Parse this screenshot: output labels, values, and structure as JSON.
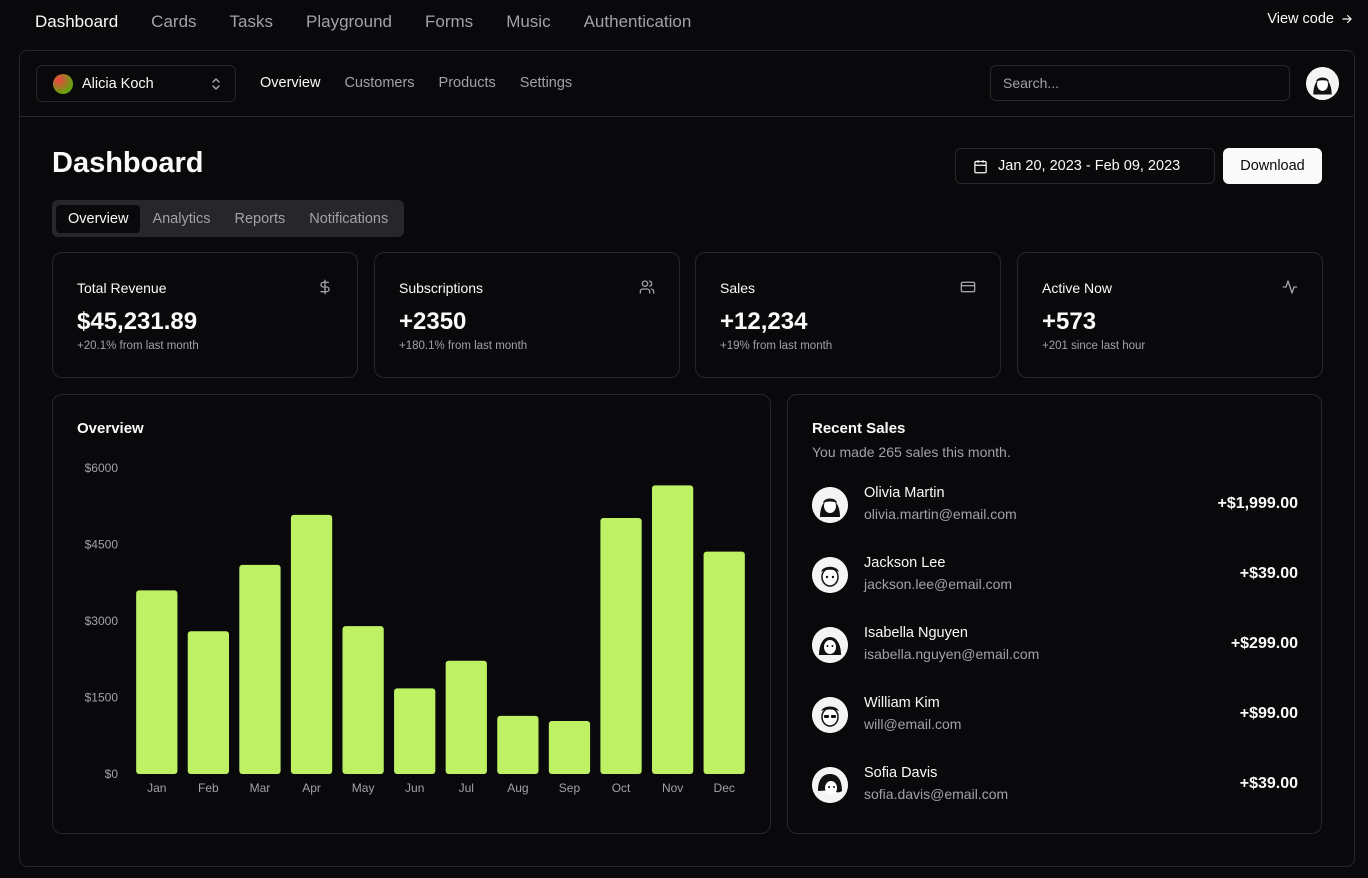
{
  "topnav": {
    "items": [
      "Dashboard",
      "Cards",
      "Tasks",
      "Playground",
      "Forms",
      "Music",
      "Authentication"
    ],
    "view_code": "View code"
  },
  "header": {
    "team": "Alicia Koch",
    "nav": [
      "Overview",
      "Customers",
      "Products",
      "Settings"
    ],
    "search_placeholder": "Search..."
  },
  "page": {
    "title": "Dashboard",
    "date_range": "Jan 20, 2023 - Feb 09, 2023",
    "download": "Download",
    "tabs": [
      "Overview",
      "Analytics",
      "Reports",
      "Notifications"
    ]
  },
  "stats": [
    {
      "label": "Total Revenue",
      "value": "$45,231.89",
      "sub": "+20.1% from last month",
      "icon": "dollar-icon"
    },
    {
      "label": "Subscriptions",
      "value": "+2350",
      "sub": "+180.1% from last month",
      "icon": "users-icon"
    },
    {
      "label": "Sales",
      "value": "+12,234",
      "sub": "+19% from last month",
      "icon": "credit-card-icon"
    },
    {
      "label": "Active Now",
      "value": "+573",
      "sub": "+201 since last hour",
      "icon": "activity-icon"
    }
  ],
  "overview": {
    "title": "Overview"
  },
  "chart_data": {
    "type": "bar",
    "title": "Overview",
    "categories": [
      "Jan",
      "Feb",
      "Mar",
      "Apr",
      "May",
      "Jun",
      "Jul",
      "Aug",
      "Sep",
      "Oct",
      "Nov",
      "Dec"
    ],
    "values": [
      3600,
      2800,
      4100,
      5080,
      2900,
      1680,
      2220,
      1140,
      1040,
      5020,
      5660,
      4360
    ],
    "y_ticks": [
      "$0",
      "$1500",
      "$3000",
      "$4500",
      "$6000"
    ],
    "ylim": [
      0,
      6000
    ],
    "bar_color": "#bef264",
    "grid": false
  },
  "recent": {
    "title": "Recent Sales",
    "desc": "You made 265 sales this month.",
    "sales": [
      {
        "name": "Olivia Martin",
        "email": "olivia.martin@email.com",
        "amount": "+$1,999.00"
      },
      {
        "name": "Jackson Lee",
        "email": "jackson.lee@email.com",
        "amount": "+$39.00"
      },
      {
        "name": "Isabella Nguyen",
        "email": "isabella.nguyen@email.com",
        "amount": "+$299.00"
      },
      {
        "name": "William Kim",
        "email": "will@email.com",
        "amount": "+$99.00"
      },
      {
        "name": "Sofia Davis",
        "email": "sofia.davis@email.com",
        "amount": "+$39.00"
      }
    ]
  },
  "colors": {
    "background": "#09090b",
    "border": "#27272a",
    "muted": "#a1a1aa",
    "accent": "#bef264"
  }
}
